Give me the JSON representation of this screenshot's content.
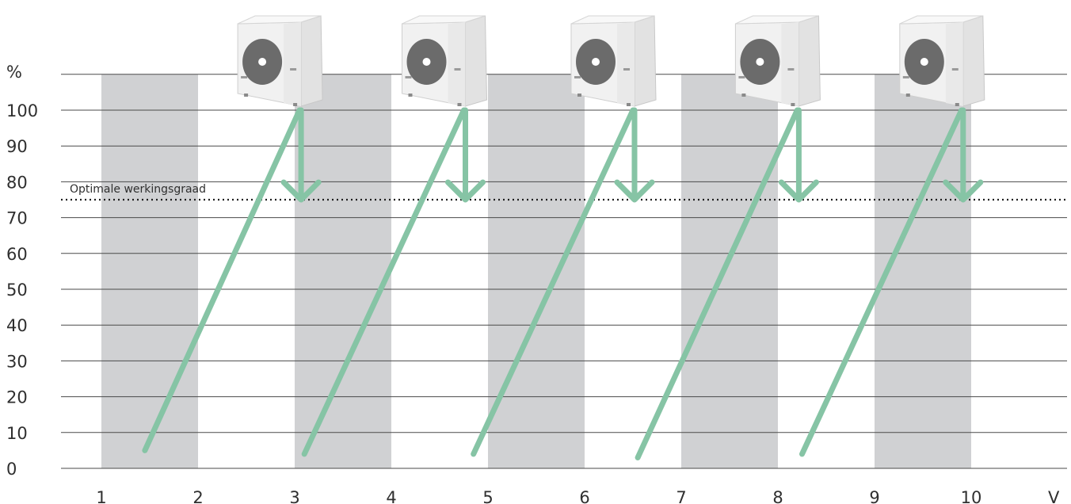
{
  "chart_data": {
    "type": "line",
    "ylabel": "%",
    "xlabel": "V",
    "ylim": [
      0,
      110
    ],
    "xlim": [
      0.5,
      11
    ],
    "y_ticks": [
      "0",
      "10",
      "20",
      "30",
      "40",
      "50",
      "60",
      "70",
      "80",
      "90",
      "100"
    ],
    "x_ticks": [
      "1",
      "2",
      "3",
      "4",
      "5",
      "6",
      "7",
      "8",
      "9",
      "10"
    ],
    "shaded_bands": [
      [
        1,
        2
      ],
      [
        3,
        4
      ],
      [
        5,
        6
      ],
      [
        7,
        8
      ],
      [
        9,
        10
      ]
    ],
    "reference_line": {
      "label": "Optimale werkingsgraad",
      "y": 75
    },
    "cycles": [
      {
        "rise": [
          [
            1.45,
            5
          ],
          [
            3.05,
            100
          ]
        ],
        "drop": [
          3.05,
          100,
          75
        ]
      },
      {
        "rise": [
          [
            3.1,
            4
          ],
          [
            4.75,
            100
          ]
        ],
        "drop": [
          4.75,
          100,
          75
        ]
      },
      {
        "rise": [
          [
            4.85,
            4
          ],
          [
            6.5,
            100
          ]
        ],
        "drop": [
          6.5,
          100,
          75
        ]
      },
      {
        "rise": [
          [
            6.55,
            3
          ],
          [
            8.2,
            100
          ]
        ],
        "drop": [
          8.2,
          100,
          75
        ]
      },
      {
        "rise": [
          [
            8.25,
            4
          ],
          [
            9.9,
            100
          ]
        ],
        "drop": [
          9.9,
          100,
          75
        ]
      }
    ],
    "colors": {
      "band": "#d0d1d3",
      "grid": "#4a4a4a",
      "series": "#86c4a5",
      "unit_body": "#f1f1f1",
      "unit_fan": "#6b6b6b"
    },
    "icon": "heat-pump-outdoor-unit-icon"
  }
}
